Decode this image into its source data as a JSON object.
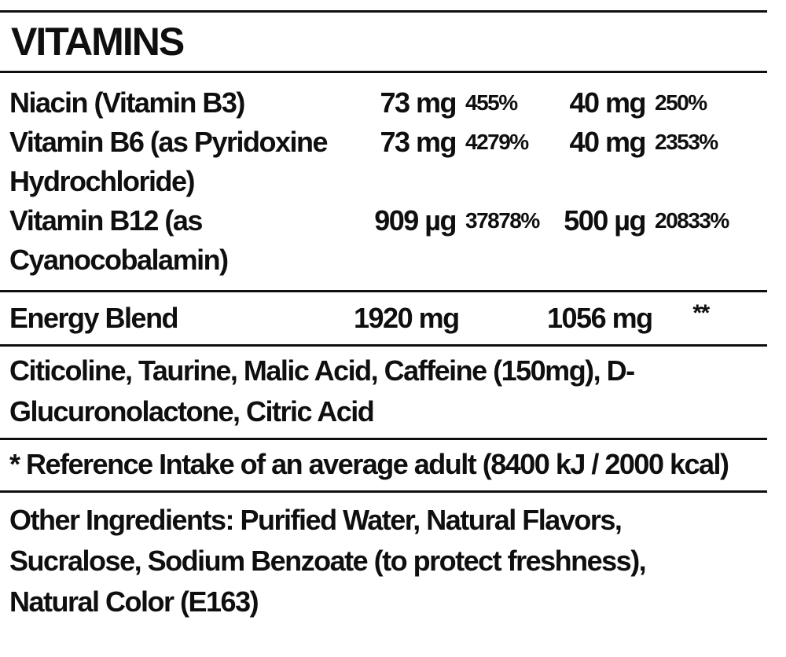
{
  "colors": {
    "background": "#ffffff",
    "text": "#0f0f0f",
    "rule": "#0f0f0f"
  },
  "label": {
    "title": "VITAMINS",
    "vitamin_rows": [
      {
        "name": "Niacin (Vitamin B3)",
        "amount_1": "73 mg",
        "percent_1": "455%",
        "amount_2": "40 mg",
        "percent_2": "250%"
      },
      {
        "name": "Vitamin B6 (as Pyridoxine Hydrochloride)",
        "amount_1": "73 mg",
        "percent_1": "4279%",
        "amount_2": "40 mg",
        "percent_2": "2353%"
      },
      {
        "name": "Vitamin B12 (as Cyanocobalamin)",
        "amount_1": "909 µg",
        "percent_1": "37878%",
        "amount_2": "500 µg",
        "percent_2": "20833%"
      }
    ],
    "energy_blend": {
      "name": "Energy Blend",
      "amount_1": "1920 mg",
      "amount_2": "1056 mg",
      "note_marker": "**"
    },
    "blend_ingredients": "Citicoline, Taurine, Malic Acid, Caffeine (150mg), D-Glucuronolactone, Citric Acid",
    "reference_note": "* Reference Intake of an average adult (8400 kJ / 2000 kcal)",
    "other_ingredients": {
      "label": "Other Ingredients:",
      "text": "Purified Water, Natural Flavors, Sucralose, Sodium Benzoate (to protect freshness), Natural Color (E163)"
    }
  }
}
